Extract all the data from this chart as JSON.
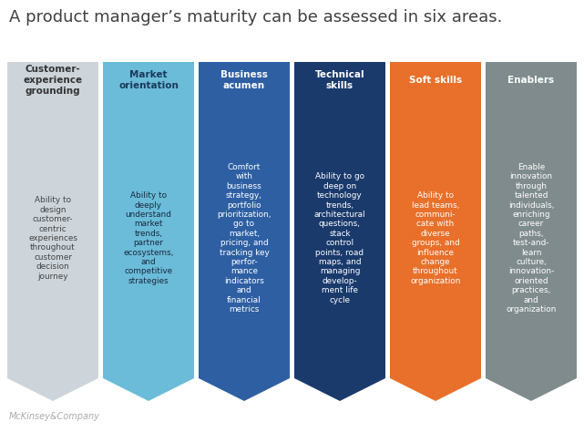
{
  "title": "A product manager’s maturity can be assessed in six areas.",
  "title_color": "#404040",
  "title_fontsize": 13,
  "background_color": "#ffffff",
  "footer_text": "McKinsey&Company",
  "footer_color": "#aaaaaa",
  "columns": [
    {
      "header": "Customer-\nexperience\ngrounding",
      "body": "Ability to\ndesign\ncustomer-\ncentric\nexperiences\nthroughout\ncustomer\ndecision\njourney",
      "color": "#cdd5db",
      "header_text_color": "#333333",
      "body_text_color": "#444444",
      "header_bold": true
    },
    {
      "header": "Market\norientation",
      "body": "Ability to\ndeeply\nunderstand\nmarket\ntrends,\npartner\necosystems,\nand\ncompetitive\nstrategies",
      "color": "#6bbcd8",
      "header_text_color": "#1a3a5c",
      "body_text_color": "#1a2a40",
      "header_bold": true
    },
    {
      "header": "Business\nacumen",
      "body": "Comfort\nwith\nbusiness\nstrategy,\nportfolio\nprioritization,\ngo to\nmarket,\npricing, and\ntracking key\nperfor-\nmance\nindicators\nand\nfinancial\nmetrics",
      "color": "#2e5fa3",
      "header_text_color": "#ffffff",
      "body_text_color": "#ffffff",
      "header_bold": true
    },
    {
      "header": "Technical\nskills",
      "body": "Ability to go\ndeep on\ntechnology\ntrends,\narchitectural\nquestions,\nstack\ncontrol\npoints, road\nmaps, and\nmanaging\ndevelop-\nment life\ncycle",
      "color": "#1a3a6c",
      "header_text_color": "#ffffff",
      "body_text_color": "#ffffff",
      "header_bold": true
    },
    {
      "header": "Soft skills",
      "body": "Ability to\nlead teams,\ncommuni-\ncate with\ndiverse\ngroups, and\ninfluence\nchange\nthroughout\norganization",
      "color": "#e8702a",
      "header_text_color": "#ffffff",
      "body_text_color": "#ffffff",
      "header_bold": true
    },
    {
      "header": "Enablers",
      "body": "Enable\ninnovation\nthrough\ntalented\nindividuals,\nenriching\ncareer\npaths,\ntest-and-\nlearn\nculture,\ninnovation-\noriented\npractices,\nand\norganization",
      "color": "#808b8d",
      "header_text_color": "#ffffff",
      "body_text_color": "#ffffff",
      "header_bold": true
    }
  ]
}
